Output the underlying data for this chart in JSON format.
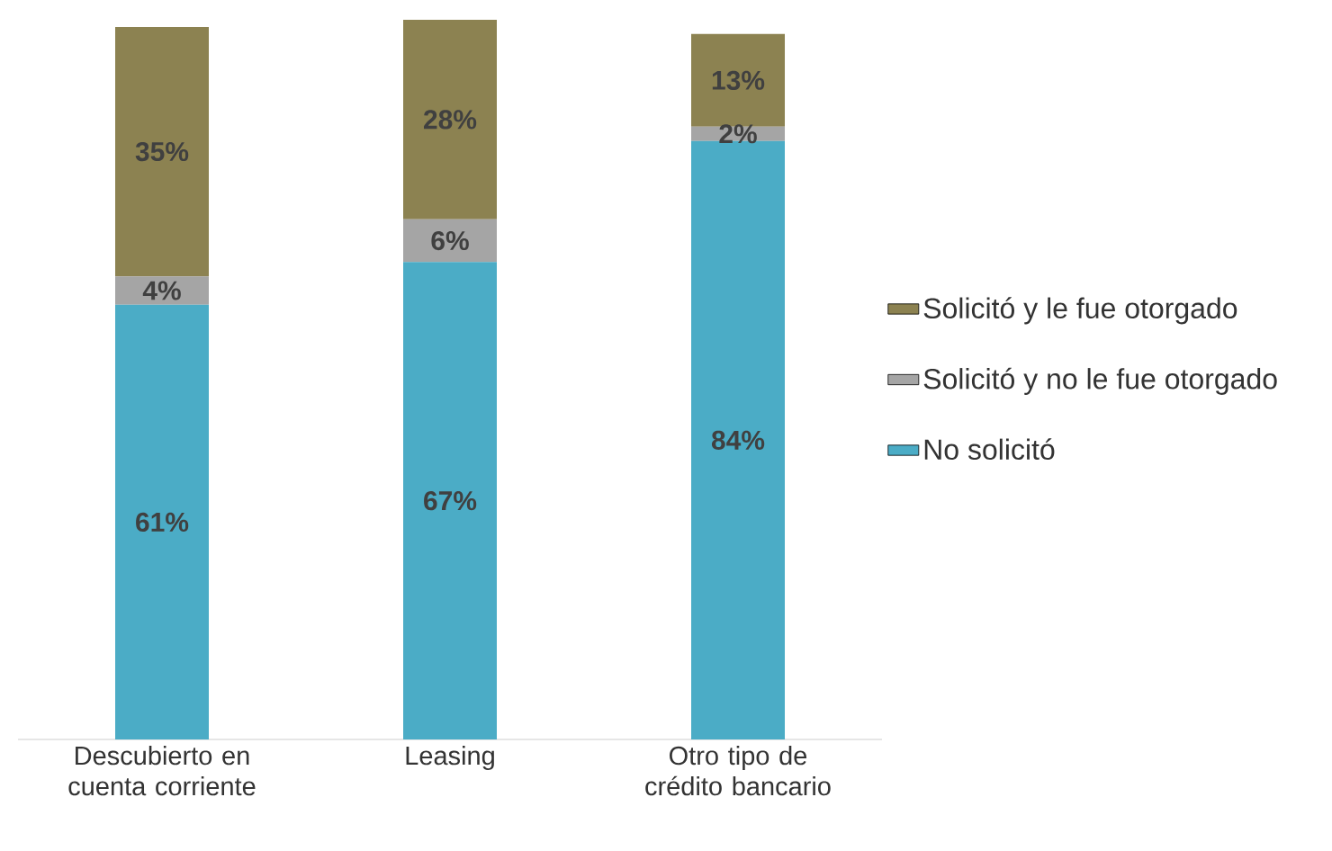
{
  "chart_data": {
    "type": "bar",
    "stacked": true,
    "categories": [
      "Descubierto en cuenta corriente",
      "Leasing",
      "Otro tipo de crédito bancario"
    ],
    "series": [
      {
        "name": "No solicitó",
        "color": "#4bacc6",
        "values": [
          61,
          67,
          84
        ],
        "value_labels": [
          "61%",
          "67%",
          "84%"
        ]
      },
      {
        "name": "Solicitó y no le fue otorgado",
        "color": "#a5a5a5",
        "values": [
          4,
          6,
          2
        ],
        "value_labels": [
          "4%",
          "6%",
          "2%"
        ]
      },
      {
        "name": "Solicitó y le fue otorgado",
        "color": "#8c8251",
        "values": [
          35,
          28,
          13
        ],
        "value_labels": [
          "35%",
          "28%",
          "13%"
        ]
      }
    ],
    "legend": "right",
    "tick_labels": "x",
    "grid": false
  }
}
